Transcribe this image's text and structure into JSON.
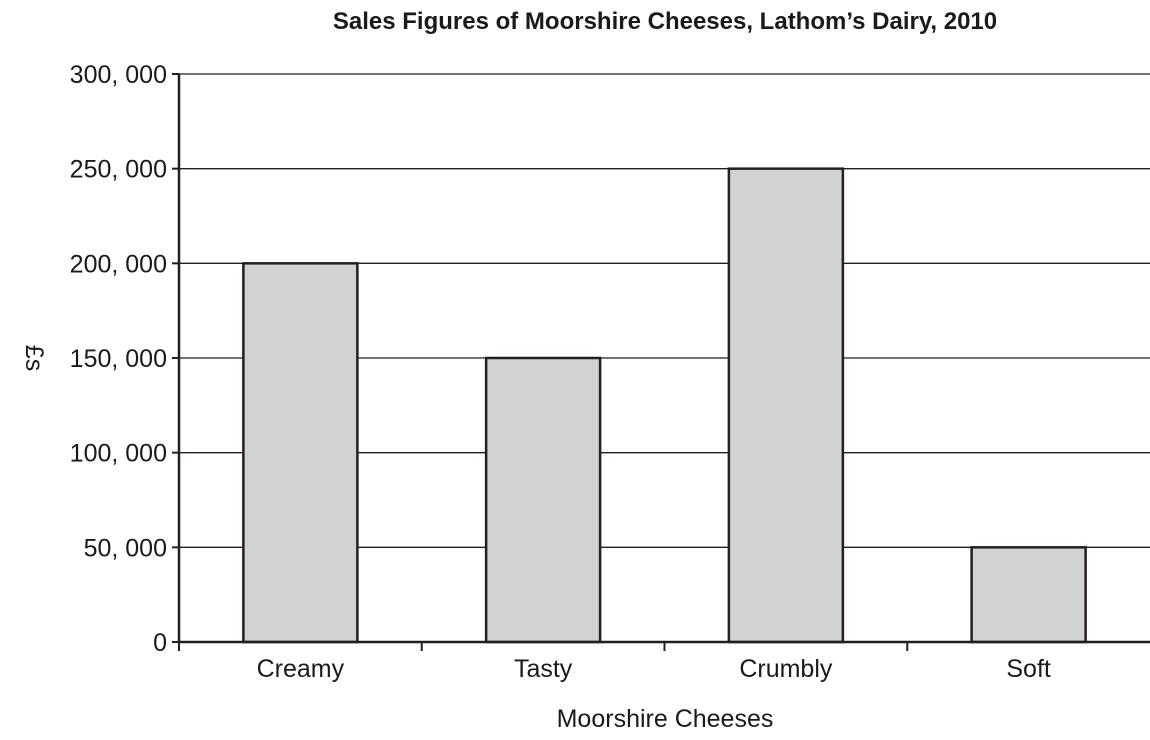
{
  "chart_data": {
    "type": "bar",
    "title": "Sales Figures of Moorshire Cheeses, Lathom’s Dairy, 2010",
    "xlabel": "Moorshire Cheeses",
    "ylabel": "£s",
    "categories": [
      "Creamy",
      "Tasty",
      "Crumbly",
      "Soft"
    ],
    "values": [
      200000,
      150000,
      250000,
      50000
    ],
    "ylim": [
      0,
      300000
    ],
    "yticks": [
      0,
      50000,
      100000,
      150000,
      200000,
      250000,
      300000
    ],
    "ytick_labels": [
      "0",
      "50, 000",
      "100, 000",
      "150, 000",
      "200, 000",
      "250, 000",
      "300, 000"
    ],
    "grid": "horizontal",
    "legend": "none",
    "bar_color": "#d1d2d4",
    "bar_edge_color": "#231f20"
  }
}
